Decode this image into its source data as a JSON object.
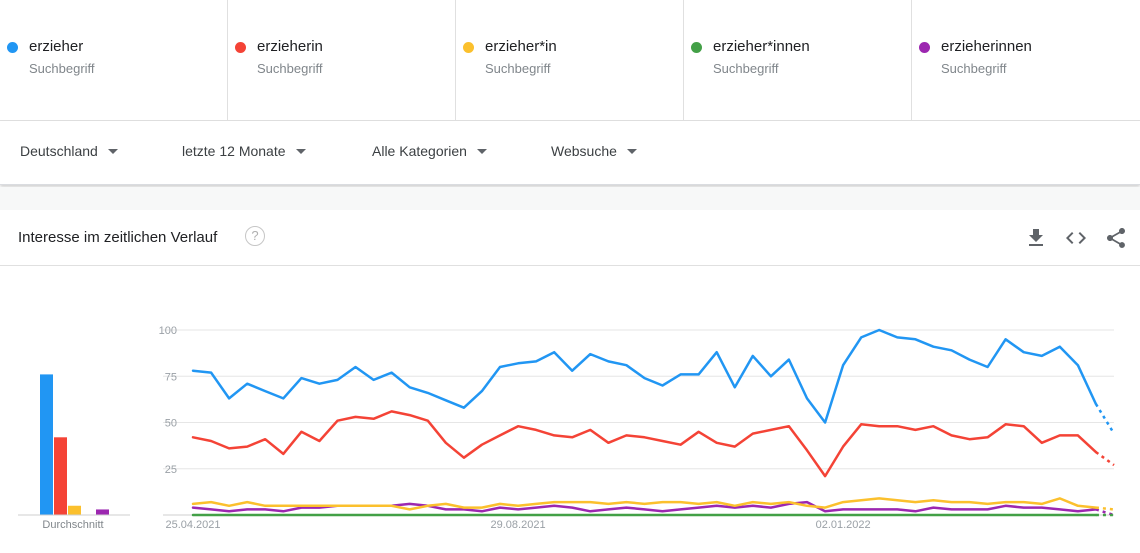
{
  "terms": [
    {
      "name": "erzieher",
      "type": "Suchbegriff",
      "color": "#2196f3"
    },
    {
      "name": "erzieherin",
      "type": "Suchbegriff",
      "color": "#f44336"
    },
    {
      "name": "erzieher*in",
      "type": "Suchbegriff",
      "color": "#fbc02d"
    },
    {
      "name": "erzieher*innen",
      "type": "Suchbegriff",
      "color": "#43a047"
    },
    {
      "name": "erzieherinnen",
      "type": "Suchbegriff",
      "color": "#9c27b0"
    }
  ],
  "filters": {
    "region": "Deutschland",
    "period": "letzte 12 Monate",
    "category": "Alle Kategorien",
    "search_type": "Websuche"
  },
  "card": {
    "title": "Interesse im zeitlichen Verlauf",
    "help_glyph": "?",
    "icons": [
      "download-icon",
      "embed-icon",
      "share-icon"
    ]
  },
  "chart_data": {
    "type": "line",
    "title": "Interesse im zeitlichen Verlauf",
    "ylim": [
      0,
      100
    ],
    "y_ticks": [
      25,
      50,
      75,
      100
    ],
    "grid": true,
    "x_tick_labels": [
      {
        "label": "25.04.2021",
        "index": 0
      },
      {
        "label": "29.08.2021",
        "index": 18
      },
      {
        "label": "02.01.2022",
        "index": 36
      }
    ],
    "partial_last_point": true,
    "series": [
      {
        "name": "erzieher",
        "color": "#2196f3",
        "values": [
          78,
          77,
          63,
          71,
          67,
          63,
          74,
          71,
          73,
          80,
          73,
          77,
          69,
          66,
          62,
          58,
          67,
          80,
          82,
          83,
          88,
          78,
          87,
          83,
          81,
          74,
          70,
          76,
          76,
          88,
          69,
          86,
          75,
          84,
          63,
          50,
          81,
          96,
          100,
          96,
          95,
          91,
          89,
          84,
          80,
          95,
          88,
          86,
          91,
          81,
          60,
          44
        ]
      },
      {
        "name": "erzieherin",
        "color": "#f44336",
        "values": [
          42,
          40,
          36,
          37,
          41,
          33,
          45,
          40,
          51,
          53,
          52,
          56,
          54,
          51,
          39,
          31,
          38,
          43,
          48,
          46,
          43,
          42,
          46,
          39,
          43,
          42,
          40,
          38,
          45,
          39,
          37,
          44,
          46,
          48,
          35,
          21,
          37,
          49,
          48,
          48,
          46,
          48,
          43,
          41,
          42,
          49,
          48,
          39,
          43,
          43,
          34,
          27
        ]
      },
      {
        "name": "erzieher*in",
        "color": "#fbc02d",
        "values": [
          6,
          7,
          5,
          7,
          5,
          5,
          5,
          5,
          5,
          5,
          5,
          5,
          3,
          5,
          6,
          4,
          4,
          6,
          5,
          6,
          7,
          7,
          7,
          6,
          7,
          6,
          7,
          7,
          6,
          7,
          5,
          7,
          6,
          7,
          5,
          4,
          7,
          8,
          9,
          8,
          7,
          8,
          7,
          7,
          6,
          7,
          7,
          6,
          9,
          5,
          4,
          3
        ]
      },
      {
        "name": "erzieher*innen",
        "color": "#43a047",
        "values": [
          0,
          0,
          0,
          0,
          0,
          0,
          0,
          0,
          0,
          0,
          0,
          0,
          0,
          0,
          0,
          0,
          0,
          0,
          0,
          0,
          0,
          0,
          0,
          0,
          0,
          0,
          0,
          0,
          0,
          0,
          0,
          0,
          0,
          0,
          0,
          0,
          0,
          0,
          0,
          0,
          0,
          0,
          0,
          0,
          0,
          0,
          0,
          0,
          0,
          0,
          0,
          0
        ]
      },
      {
        "name": "erzieherinnen",
        "color": "#9c27b0",
        "values": [
          4,
          3,
          2,
          3,
          3,
          2,
          4,
          4,
          5,
          5,
          5,
          5,
          6,
          5,
          3,
          3,
          2,
          4,
          3,
          4,
          5,
          4,
          2,
          3,
          4,
          3,
          2,
          3,
          4,
          5,
          4,
          5,
          4,
          6,
          7,
          2,
          3,
          3,
          3,
          3,
          2,
          4,
          3,
          3,
          3,
          5,
          4,
          4,
          3,
          2,
          3,
          0
        ]
      }
    ],
    "average": {
      "label": "Durchschnitt",
      "values": [
        76,
        42,
        5,
        0,
        3
      ]
    }
  }
}
